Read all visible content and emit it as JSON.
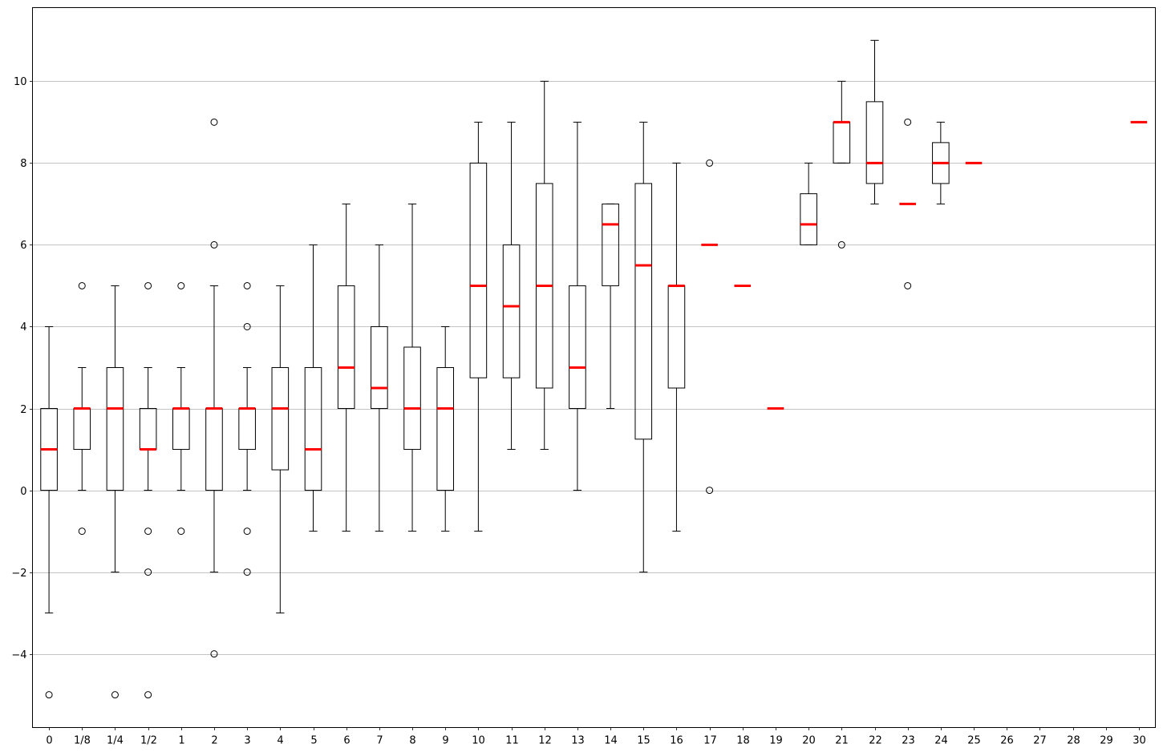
{
  "chart_data": {
    "type": "box",
    "categories": [
      "0",
      "1/8",
      "1/4",
      "1/2",
      "1",
      "2",
      "3",
      "4",
      "5",
      "6",
      "7",
      "8",
      "9",
      "10",
      "11",
      "12",
      "13",
      "14",
      "15",
      "16",
      "17",
      "18",
      "19",
      "20",
      "21",
      "22",
      "23",
      "24",
      "25",
      "26",
      "27",
      "28",
      "29",
      "30"
    ],
    "ylim": [
      -5.8,
      11.8
    ],
    "yticks": [
      -4,
      -2,
      0,
      2,
      4,
      6,
      8,
      10
    ],
    "ytick_labels": [
      "−4",
      "−2",
      "0",
      "2",
      "4",
      "6",
      "8",
      "10"
    ],
    "grid": "horizontal",
    "median_color": "#ff0000",
    "boxes": [
      {
        "category": "0",
        "whislo": -3,
        "q1": 0,
        "med": 1,
        "q3": 2,
        "whishi": 4,
        "fliers": [
          -5
        ]
      },
      {
        "category": "1/8",
        "whislo": 0,
        "q1": 1,
        "med": 2,
        "q3": 2,
        "whishi": 3,
        "fliers": [
          5,
          -1
        ]
      },
      {
        "category": "1/4",
        "whislo": -2,
        "q1": 0,
        "med": 2,
        "q3": 3,
        "whishi": 5,
        "fliers": [
          -5
        ]
      },
      {
        "category": "1/2",
        "whislo": 0,
        "q1": 1,
        "med": 1,
        "q3": 2,
        "whishi": 3,
        "fliers": [
          5,
          -1,
          -2,
          -5
        ]
      },
      {
        "category": "1",
        "whislo": 0,
        "q1": 1,
        "med": 2,
        "q3": 2,
        "whishi": 3,
        "fliers": [
          5,
          -1
        ]
      },
      {
        "category": "2",
        "whislo": -2,
        "q1": 0,
        "med": 2,
        "q3": 2,
        "whishi": 5,
        "fliers": [
          9,
          6,
          -4
        ]
      },
      {
        "category": "3",
        "whislo": 0,
        "q1": 1,
        "med": 2,
        "q3": 2,
        "whishi": 3,
        "fliers": [
          5,
          4,
          -1,
          -2
        ]
      },
      {
        "category": "4",
        "whislo": -3,
        "q1": 0.5,
        "med": 2,
        "q3": 3,
        "whishi": 5,
        "fliers": []
      },
      {
        "category": "5",
        "whislo": -1,
        "q1": 0,
        "med": 1,
        "q3": 3,
        "whishi": 6,
        "fliers": []
      },
      {
        "category": "6",
        "whislo": -1,
        "q1": 2,
        "med": 3,
        "q3": 5,
        "whishi": 7,
        "fliers": []
      },
      {
        "category": "7",
        "whislo": -1,
        "q1": 2,
        "med": 2.5,
        "q3": 4,
        "whishi": 6,
        "fliers": []
      },
      {
        "category": "8",
        "whislo": -1,
        "q1": 1,
        "med": 2,
        "q3": 3.5,
        "whishi": 7,
        "fliers": []
      },
      {
        "category": "9",
        "whislo": -1,
        "q1": 0,
        "med": 2,
        "q3": 3,
        "whishi": 4,
        "fliers": []
      },
      {
        "category": "10",
        "whislo": -1,
        "q1": 2.75,
        "med": 5,
        "q3": 8,
        "whishi": 9,
        "fliers": []
      },
      {
        "category": "11",
        "whislo": 1,
        "q1": 2.75,
        "med": 4.5,
        "q3": 6,
        "whishi": 9,
        "fliers": []
      },
      {
        "category": "12",
        "whislo": 1,
        "q1": 2.5,
        "med": 5,
        "q3": 7.5,
        "whishi": 10,
        "fliers": []
      },
      {
        "category": "13",
        "whislo": 0,
        "q1": 2,
        "med": 3,
        "q3": 5,
        "whishi": 9,
        "fliers": []
      },
      {
        "category": "14",
        "whislo": 2,
        "q1": 5,
        "med": 6.5,
        "q3": 7,
        "whishi": 7,
        "fliers": []
      },
      {
        "category": "15",
        "whislo": -2,
        "q1": 1.25,
        "med": 5.5,
        "q3": 7.5,
        "whishi": 9,
        "fliers": []
      },
      {
        "category": "16",
        "whislo": -1,
        "q1": 2.5,
        "med": 5,
        "q3": 5,
        "whishi": 8,
        "fliers": []
      },
      {
        "category": "17",
        "whislo": 6,
        "q1": 6,
        "med": 6,
        "q3": 6,
        "whishi": 6,
        "fliers": [
          8,
          0
        ]
      },
      {
        "category": "18",
        "whislo": 5,
        "q1": 5,
        "med": 5,
        "q3": 5,
        "whishi": 5,
        "fliers": []
      },
      {
        "category": "19",
        "whislo": 2,
        "q1": 2,
        "med": 2,
        "q3": 2,
        "whishi": 2,
        "fliers": []
      },
      {
        "category": "20",
        "whislo": 6,
        "q1": 6,
        "med": 6.5,
        "q3": 7.25,
        "whishi": 8,
        "fliers": []
      },
      {
        "category": "21",
        "whislo": 8,
        "q1": 8,
        "med": 9,
        "q3": 9,
        "whishi": 10,
        "fliers": [
          6
        ]
      },
      {
        "category": "22",
        "whislo": 7,
        "q1": 7.5,
        "med": 8,
        "q3": 9.5,
        "whishi": 11,
        "fliers": []
      },
      {
        "category": "23",
        "whislo": 7,
        "q1": 7,
        "med": 7,
        "q3": 7,
        "whishi": 7,
        "fliers": [
          9,
          5
        ]
      },
      {
        "category": "24",
        "whislo": 7,
        "q1": 7.5,
        "med": 8,
        "q3": 8.5,
        "whishi": 9,
        "fliers": []
      },
      {
        "category": "25",
        "whislo": 8,
        "q1": 8,
        "med": 8,
        "q3": 8,
        "whishi": 8,
        "fliers": []
      },
      {
        "category": "26",
        "empty": true
      },
      {
        "category": "27",
        "empty": true
      },
      {
        "category": "28",
        "empty": true
      },
      {
        "category": "29",
        "empty": true
      },
      {
        "category": "30",
        "whislo": 9,
        "q1": 9,
        "med": 9,
        "q3": 9,
        "whishi": 9,
        "fliers": []
      }
    ]
  }
}
